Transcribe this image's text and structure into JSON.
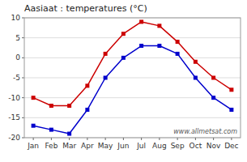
{
  "chart_data": {
    "type": "line",
    "title": "Aasiaat : temperatures (°C)",
    "categories": [
      "Jan",
      "Feb",
      "Mar",
      "Apr",
      "May",
      "Jun",
      "Jul",
      "Aug",
      "Sep",
      "Oct",
      "Nov",
      "Dec"
    ],
    "series": [
      {
        "color": "#cc0000",
        "marker": "square",
        "values": [
          -10,
          -12,
          -12,
          -7,
          1,
          6,
          9,
          8,
          4,
          -1,
          -5,
          -8
        ]
      },
      {
        "color": "#0000cc",
        "marker": "square",
        "values": [
          -17,
          -18,
          -19,
          -13,
          -5,
          0,
          3,
          3,
          1,
          -5,
          -10,
          -13
        ]
      }
    ],
    "ylim": [
      -20,
      10
    ],
    "yticks": [
      -20,
      -15,
      -10,
      -5,
      0,
      5,
      10
    ],
    "grid": true,
    "annotations": [
      "www.allmetsat.com"
    ]
  }
}
